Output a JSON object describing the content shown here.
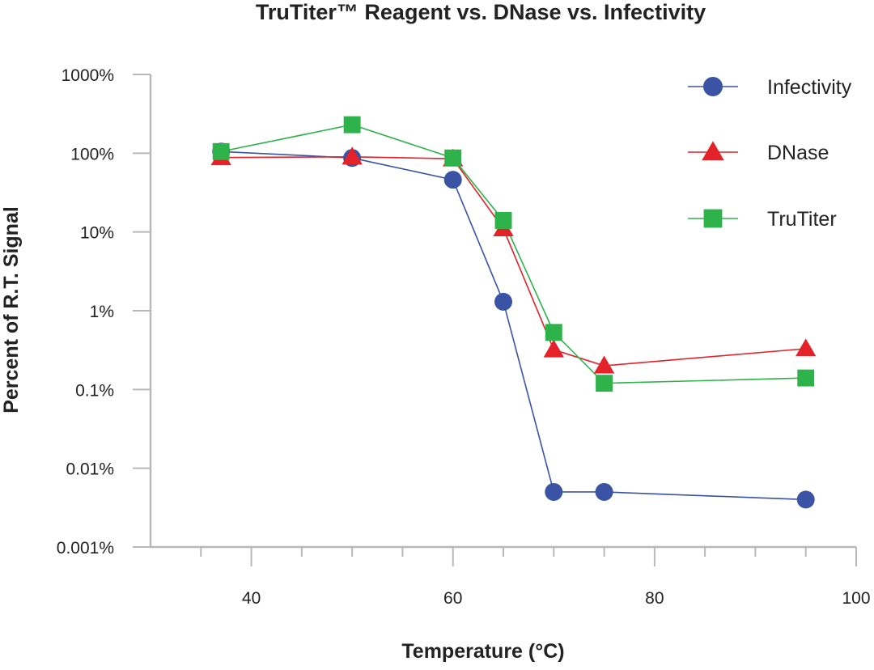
{
  "chart_data": {
    "type": "line",
    "title": "TruTiter™ Reagent vs. DNase vs. Infectivity",
    "xlabel": "Temperature (°C)",
    "ylabel": "Percent of R.T. Signal",
    "xlim": [
      30,
      100
    ],
    "ylim": [
      0.001,
      1000
    ],
    "yscale": "log",
    "x_ticks": [
      40,
      60,
      80,
      100
    ],
    "y_ticks": [
      {
        "value": 1000,
        "label": "1000%"
      },
      {
        "value": 100,
        "label": "100%"
      },
      {
        "value": 10,
        "label": "10%"
      },
      {
        "value": 1,
        "label": "1%"
      },
      {
        "value": 0.1,
        "label": "0.1%"
      },
      {
        "value": 0.01,
        "label": "0.01%"
      },
      {
        "value": 0.001,
        "label": "0.001%"
      }
    ],
    "grid": false,
    "legend_position": "top-right",
    "series": [
      {
        "name": "Infectivity",
        "color": "#3a53a4",
        "marker": "circle",
        "x": [
          37,
          50,
          60,
          65,
          70,
          75,
          95
        ],
        "y": [
          105,
          87,
          46,
          1.3,
          0.005,
          0.005,
          0.004
        ]
      },
      {
        "name": "DNase",
        "color": "#e3222a",
        "marker": "triangle",
        "x": [
          37,
          50,
          60,
          65,
          70,
          75,
          95
        ],
        "y": [
          88,
          90,
          85,
          11,
          0.32,
          0.2,
          0.33
        ]
      },
      {
        "name": "TruTiter",
        "color": "#2eb24a",
        "marker": "square",
        "x": [
          37,
          50,
          60,
          65,
          70,
          75,
          95
        ],
        "y": [
          105,
          230,
          87,
          14,
          0.53,
          0.12,
          0.14
        ]
      }
    ]
  }
}
